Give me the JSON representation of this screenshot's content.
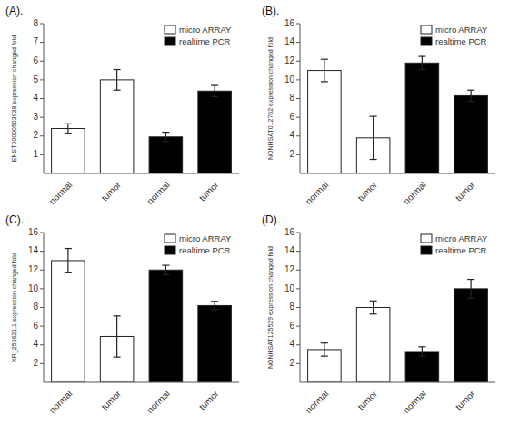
{
  "chart_data": [
    {
      "type": "bar",
      "title": "(A).",
      "ylabel": "ENST00000503938 expression changed fold",
      "categories": [
        "normal",
        "tumor",
        "normal",
        "tumor"
      ],
      "series": [
        {
          "name": "micro ARRAY",
          "color": "white",
          "values": [
            2.4,
            5.0,
            null,
            null
          ],
          "errors": [
            0.25,
            0.55,
            null,
            null
          ]
        },
        {
          "name": "realtime PCR",
          "color": "black",
          "values": [
            null,
            null,
            1.95,
            4.4
          ],
          "errors": [
            null,
            null,
            0.25,
            0.3
          ]
        }
      ],
      "ylim": [
        0,
        8
      ],
      "yticks": [
        1,
        2,
        3,
        4,
        5,
        6,
        7,
        8
      ],
      "grid": false,
      "legend": "upper right"
    },
    {
      "type": "bar",
      "title": "(B).",
      "ylabel": "NONHSAT012762 expression changed fold",
      "categories": [
        "normal",
        "tumor",
        "normal",
        "tumor"
      ],
      "series": [
        {
          "name": "micro ARRAY",
          "color": "white",
          "values": [
            11.0,
            3.8,
            null,
            null
          ],
          "errors": [
            1.2,
            2.3,
            null,
            null
          ]
        },
        {
          "name": "realtime PCR",
          "color": "black",
          "values": [
            null,
            null,
            11.8,
            8.3
          ],
          "errors": [
            null,
            null,
            0.7,
            0.6
          ]
        }
      ],
      "ylim": [
        0,
        16
      ],
      "yticks": [
        2,
        4,
        6,
        8,
        10,
        12,
        14,
        16
      ],
      "grid": false,
      "legend": "upper right"
    },
    {
      "type": "bar",
      "title": "(C).",
      "ylabel": "XR_250621.1 expression changed fold",
      "categories": [
        "normal",
        "tumor",
        "normal",
        "tumor"
      ],
      "series": [
        {
          "name": "micro ARRAY",
          "color": "white",
          "values": [
            13.0,
            4.9,
            null,
            null
          ],
          "errors": [
            1.3,
            2.2,
            null,
            null
          ]
        },
        {
          "name": "realtime PCR",
          "color": "black",
          "values": [
            null,
            null,
            12.0,
            8.2
          ],
          "errors": [
            null,
            null,
            0.5,
            0.45
          ]
        }
      ],
      "ylim": [
        0,
        16
      ],
      "yticks": [
        2,
        4,
        6,
        8,
        10,
        12,
        14,
        16
      ],
      "grid": false,
      "legend": "upper right"
    },
    {
      "type": "bar",
      "title": "(D).",
      "ylabel": "NONHSAT125529 expression changed fold",
      "categories": [
        "normal",
        "tumor",
        "normal",
        "tumor"
      ],
      "series": [
        {
          "name": "micro ARRAY",
          "color": "white",
          "values": [
            3.5,
            8.0,
            null,
            null
          ],
          "errors": [
            0.7,
            0.7,
            null,
            null
          ]
        },
        {
          "name": "realtime PCR",
          "color": "black",
          "values": [
            null,
            null,
            3.3,
            10.0
          ],
          "errors": [
            null,
            null,
            0.5,
            1.0
          ]
        }
      ],
      "ylim": [
        0,
        16
      ],
      "yticks": [
        2,
        4,
        6,
        8,
        10,
        12,
        14,
        16
      ],
      "grid": false,
      "legend": "upper right"
    }
  ]
}
